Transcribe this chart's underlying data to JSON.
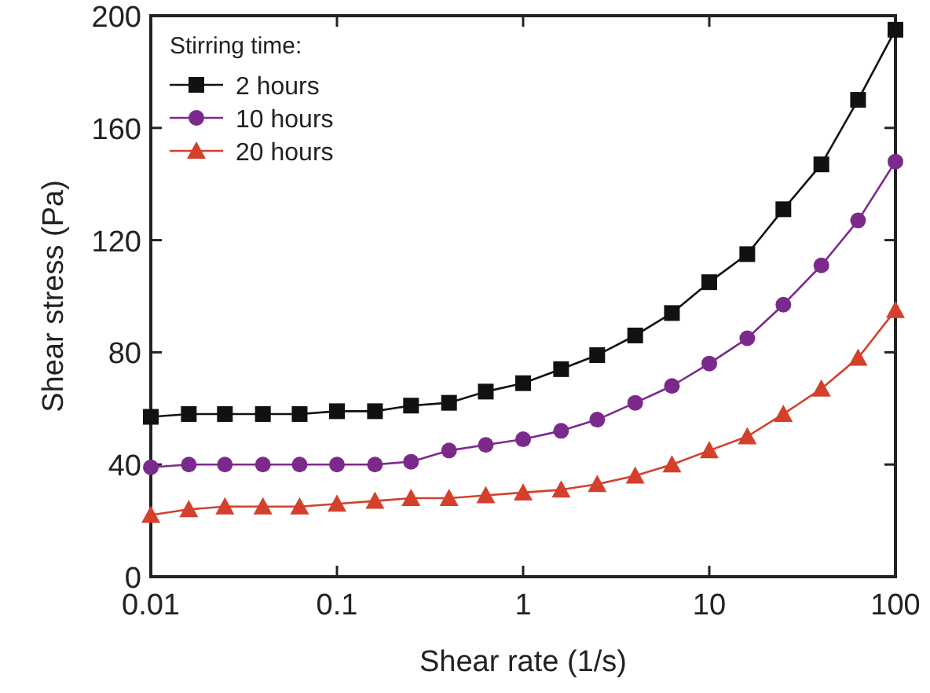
{
  "chart_data": {
    "type": "line",
    "xlabel": "Shear rate (1/s)",
    "ylabel": "Shear stress (Pa)",
    "legend_title": "Stirring time:",
    "legend": "top left",
    "log": "x",
    "grid": false,
    "x": [
      0.01,
      0.016,
      0.025,
      0.04,
      0.063,
      0.1,
      0.16,
      0.25,
      0.4,
      0.63,
      1,
      1.6,
      2.5,
      4,
      6.3,
      10,
      16,
      25,
      40,
      63,
      100
    ],
    "xlim": [
      0.01,
      100
    ],
    "xticks": [
      0.01,
      0.1,
      1,
      10,
      100
    ],
    "ylim": [
      0,
      200
    ],
    "yticks": [
      0,
      40,
      80,
      120,
      160,
      200
    ],
    "series": [
      {
        "name": "2 hours",
        "color": "#111111",
        "marker": "square",
        "values": [
          57,
          58,
          58,
          58,
          58,
          59,
          59,
          61,
          62,
          66,
          69,
          74,
          79,
          86,
          94,
          105,
          115,
          131,
          147,
          170,
          195
        ]
      },
      {
        "name": "10 hours",
        "color": "#7b2a8c",
        "marker": "circle",
        "values": [
          39,
          40,
          40,
          40,
          40,
          40,
          40,
          41,
          45,
          47,
          49,
          52,
          56,
          62,
          68,
          76,
          85,
          97,
          111,
          127,
          148
        ]
      },
      {
        "name": "20 hours",
        "color": "#d4402c",
        "marker": "triangle",
        "values": [
          22,
          24,
          25,
          25,
          25,
          26,
          27,
          28,
          28,
          29,
          30,
          31,
          33,
          36,
          40,
          45,
          50,
          58,
          67,
          78,
          95
        ]
      }
    ]
  }
}
